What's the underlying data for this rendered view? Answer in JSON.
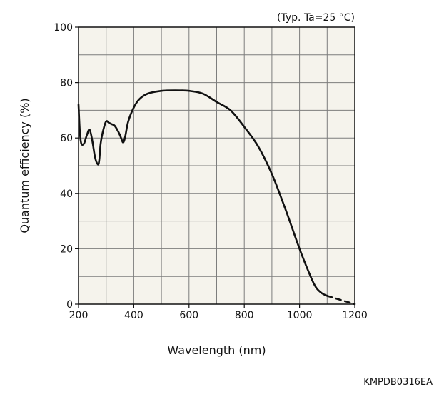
{
  "chart_data": {
    "type": "line",
    "title": "",
    "annotation": "(Typ. Ta=25 °C)",
    "xlabel": "Wavelength (nm)",
    "ylabel": "Quantum efficiency (%)",
    "xlim": [
      200,
      1200
    ],
    "ylim": [
      0,
      100
    ],
    "x_ticks": [
      200,
      400,
      600,
      800,
      1000,
      1200
    ],
    "y_ticks": [
      0,
      20,
      40,
      60,
      80,
      100
    ],
    "grid": true,
    "grid_step_x": 100,
    "grid_step_y": 10,
    "plot_background": "#f5f3ec",
    "line_color": "#111111",
    "series": [
      {
        "x": [
          200,
          205,
          210,
          220,
          230,
          240,
          250,
          260,
          270,
          275,
          280,
          290,
          300,
          310,
          320,
          330,
          340,
          350,
          360,
          365,
          370,
          380,
          400,
          420,
          450,
          500,
          550,
          600,
          650,
          700,
          750,
          800,
          850,
          900,
          950,
          1000,
          1040,
          1060,
          1080,
          1100
        ],
        "y": [
          72,
          62,
          58,
          58,
          61,
          63,
          59,
          53,
          50.5,
          52,
          58,
          63,
          66,
          65.5,
          65,
          64.5,
          63,
          61,
          58.5,
          59,
          61,
          66,
          71,
          74,
          76,
          77,
          77.2,
          77,
          76,
          73,
          70,
          64,
          57,
          47,
          34,
          20,
          10,
          6,
          4,
          3
        ]
      },
      {
        "x": [
          1100,
          1150,
          1200
        ],
        "y": [
          3,
          1.5,
          0
        ],
        "style": "dashed"
      }
    ]
  },
  "footer": {
    "code": "KMPDB0316EA"
  }
}
